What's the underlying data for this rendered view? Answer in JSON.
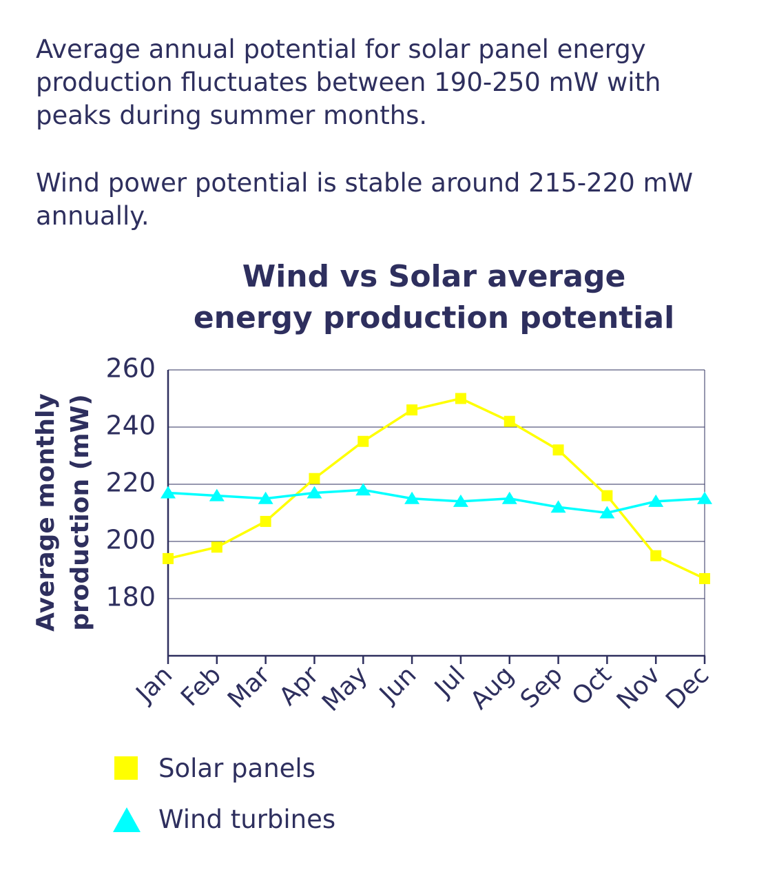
{
  "intro": {
    "paragraph1": "Average annual potential for solar panel energy production fluctuates between 190-250 mW with peaks during summer months.",
    "paragraph2": "Wind power potential is stable around 215-220 mW annually."
  },
  "chart_data": {
    "type": "line",
    "title_line1": "Wind vs Solar average",
    "title_line2": "energy production potential",
    "ylabel_line1": "Average monthly",
    "ylabel_line2": "production (mW)",
    "xlabel": "",
    "categories": [
      "Jan",
      "Feb",
      "Mar",
      "Apr",
      "May",
      "Jun",
      "Jul",
      "Aug",
      "Sep",
      "Oct",
      "Nov",
      "Dec"
    ],
    "ylim": [
      160,
      260
    ],
    "yticks": [
      180,
      200,
      220,
      240,
      260
    ],
    "grid": true,
    "legend_position": "bottom-left",
    "series": [
      {
        "name": "Solar panels",
        "color": "#ffff00",
        "marker": "square",
        "values": [
          194,
          198,
          207,
          222,
          235,
          246,
          250,
          242,
          232,
          216,
          195,
          187
        ]
      },
      {
        "name": "Wind turbines",
        "color": "#00ffff",
        "marker": "triangle",
        "values": [
          217,
          216,
          215,
          217,
          218,
          215,
          214,
          215,
          212,
          210,
          214,
          215
        ]
      }
    ]
  },
  "colors": {
    "text": "#2e2f5e",
    "grid": "#2e2f5e",
    "axis": "#2e2f5e"
  }
}
